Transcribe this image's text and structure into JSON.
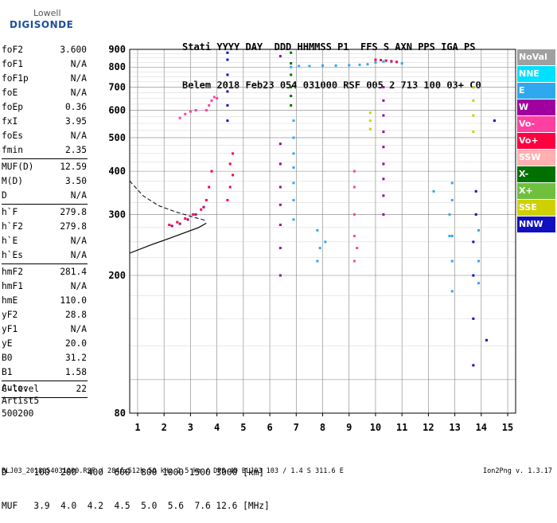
{
  "logo": {
    "line1": "Lowell",
    "line2": "DIGISONDE"
  },
  "header": {
    "line1": "Stati YYYY DAY  DDD HHMMSS P1  FFS S AXN PPS IGA PS",
    "line2": "Belem 2018 Feb23 054 031000 RSF 005 2 713 100 03+ C0"
  },
  "params": {
    "group1": [
      {
        "k": "foF2",
        "v": "3.600"
      },
      {
        "k": "foF1",
        "v": "N/A"
      },
      {
        "k": "foF1p",
        "v": "N/A"
      },
      {
        "k": "foE",
        "v": "N/A"
      },
      {
        "k": "foEp",
        "v": "0.36"
      },
      {
        "k": "fxI",
        "v": "3.95"
      },
      {
        "k": "foEs",
        "v": "N/A"
      },
      {
        "k": "fmin",
        "v": "2.35"
      }
    ],
    "group2": [
      {
        "k": "MUF(D)",
        "v": "12.59"
      },
      {
        "k": "M(D)",
        "v": "3.50"
      },
      {
        "k": "D",
        "v": "N/A"
      }
    ],
    "group3": [
      {
        "k": "h`F",
        "v": "279.8"
      },
      {
        "k": "h`F2",
        "v": "279.8"
      },
      {
        "k": "h`E",
        "v": "N/A"
      },
      {
        "k": "h`Es",
        "v": "N/A"
      }
    ],
    "group4": [
      {
        "k": "hmF2",
        "v": "281.4"
      },
      {
        "k": "hmF1",
        "v": "N/A"
      },
      {
        "k": "hmE",
        "v": "110.0"
      },
      {
        "k": "yF2",
        "v": "28.8"
      },
      {
        "k": "yF1",
        "v": "N/A"
      },
      {
        "k": "yE",
        "v": "20.0"
      },
      {
        "k": "B0",
        "v": "31.2"
      },
      {
        "k": "B1",
        "v": "1.58"
      }
    ],
    "group5": [
      {
        "k": "C-level",
        "v": "22"
      }
    ]
  },
  "auto": {
    "line1": "Auto:",
    "line2": "Artist5",
    "line3": "500200"
  },
  "muf_table": {
    "d_line": "D     100  200  400  600  800 1000 1500 3000 [km]",
    "muf_line": "MUF   3.9  4.0  4.2  4.5  5.0  5.6  7.6 12.6 [MHz]"
  },
  "footer": {
    "left": "BLJ03_2018054031000.RSF / 284fx512h 50 kHz 2.5 km / DPS-4D BLJ03 103 / 1.4 S 311.6 E",
    "right": "Ion2Png v. 1.3.17"
  },
  "legend": [
    {
      "label": "NoVal",
      "bg": "#a0a0a0",
      "fg": "#ffffff"
    },
    {
      "label": "NNE",
      "bg": "#00e0ff",
      "fg": "#ffffff"
    },
    {
      "label": "E",
      "bg": "#30a8f0",
      "fg": "#ffffff"
    },
    {
      "label": "W",
      "bg": "#a000a0",
      "fg": "#ffffff"
    },
    {
      "label": "Vo-",
      "bg": "#ff40a0",
      "fg": "#ffffff"
    },
    {
      "label": "Vo+",
      "bg": "#ff0040",
      "fg": "#ffffff"
    },
    {
      "label": "SSW",
      "bg": "#ffb0b0",
      "fg": "#ffffff"
    },
    {
      "label": "X-",
      "bg": "#007000",
      "fg": "#ffffff"
    },
    {
      "label": "X+",
      "bg": "#70c040",
      "fg": "#ffffff"
    },
    {
      "label": "SSE",
      "bg": "#d0d000",
      "fg": "#ffffff"
    },
    {
      "label": "NNW",
      "bg": "#1010c0",
      "fg": "#ffffff"
    }
  ],
  "chart_data": {
    "type": "scatter",
    "xlim": [
      0.7,
      15.3
    ],
    "ylim": [
      80,
      900
    ],
    "x_ticks": [
      1,
      2,
      3,
      4,
      5,
      6,
      7,
      8,
      9,
      10,
      11,
      12,
      13,
      14,
      15
    ],
    "y_ticks": [
      80,
      200,
      300,
      400,
      500,
      600,
      700,
      800,
      900
    ],
    "y_scale": "log",
    "grid": true,
    "profile_solid": [
      [
        0.7,
        232
      ],
      [
        1.5,
        245
      ],
      [
        2.2,
        256
      ],
      [
        2.8,
        266
      ],
      [
        3.3,
        275
      ],
      [
        3.6,
        283
      ]
    ],
    "profile_dashed": [
      [
        0.7,
        375
      ],
      [
        1.2,
        340
      ],
      [
        1.8,
        318
      ],
      [
        2.4,
        306
      ],
      [
        2.9,
        298
      ],
      [
        3.3,
        292
      ],
      [
        3.6,
        288
      ]
    ],
    "traces": [
      {
        "color": "#30a8f0",
        "pts": [
          [
            6.8,
            800
          ],
          [
            7.1,
            805
          ],
          [
            7.5,
            805
          ],
          [
            8.0,
            808
          ],
          [
            8.5,
            808
          ],
          [
            9.0,
            810
          ],
          [
            9.4,
            812
          ],
          [
            9.7,
            815
          ],
          [
            10.0,
            825
          ],
          [
            10.3,
            830
          ],
          [
            10.6,
            828
          ],
          [
            11.0,
            820
          ]
        ]
      },
      {
        "color": "#ff0040",
        "pts": [
          [
            10.0,
            840
          ],
          [
            10.2,
            838
          ],
          [
            10.4,
            835
          ],
          [
            10.6,
            832
          ],
          [
            10.8,
            828
          ]
        ]
      },
      {
        "color": "#ff0040",
        "pts": [
          [
            2.2,
            280
          ],
          [
            2.5,
            285
          ],
          [
            2.8,
            292
          ],
          [
            3.1,
            300
          ],
          [
            3.4,
            310
          ],
          [
            3.6,
            330
          ],
          [
            3.7,
            360
          ],
          [
            3.8,
            400
          ]
        ]
      },
      {
        "color": "#a000a0",
        "pts": [
          [
            2.3,
            278
          ],
          [
            2.6,
            282
          ],
          [
            2.9,
            290
          ],
          [
            3.2,
            300
          ],
          [
            3.5,
            315
          ]
        ]
      },
      {
        "color": "#ff40a0",
        "pts": [
          [
            3.6,
            600
          ],
          [
            3.7,
            620
          ],
          [
            3.8,
            640
          ],
          [
            3.9,
            655
          ],
          [
            4.0,
            650
          ],
          [
            2.6,
            570
          ],
          [
            2.8,
            585
          ],
          [
            3.0,
            595
          ],
          [
            3.2,
            600
          ]
        ]
      },
      {
        "color": "#ff0040",
        "pts": [
          [
            4.4,
            330
          ],
          [
            4.5,
            360
          ],
          [
            4.6,
            390
          ],
          [
            4.5,
            420
          ],
          [
            4.6,
            450
          ]
        ]
      },
      {
        "color": "#007000",
        "pts": [
          [
            6.8,
            620
          ],
          [
            6.8,
            660
          ],
          [
            6.8,
            700
          ],
          [
            6.8,
            760
          ],
          [
            6.8,
            820
          ],
          [
            6.8,
            880
          ]
        ]
      },
      {
        "color": "#30a8f0",
        "pts": [
          [
            6.9,
            290
          ],
          [
            6.9,
            330
          ],
          [
            6.9,
            370
          ],
          [
            6.9,
            410
          ],
          [
            6.9,
            450
          ],
          [
            6.9,
            500
          ],
          [
            6.9,
            560
          ]
        ]
      },
      {
        "color": "#a000a0",
        "pts": [
          [
            10.3,
            300
          ],
          [
            10.3,
            340
          ],
          [
            10.3,
            380
          ],
          [
            10.3,
            420
          ],
          [
            10.3,
            470
          ],
          [
            10.3,
            520
          ],
          [
            10.3,
            580
          ],
          [
            10.3,
            640
          ],
          [
            10.3,
            700
          ]
        ]
      },
      {
        "color": "#1010c0",
        "pts": [
          [
            4.4,
            560
          ],
          [
            4.4,
            620
          ],
          [
            4.4,
            680
          ],
          [
            4.4,
            760
          ],
          [
            4.4,
            840
          ],
          [
            4.4,
            880
          ]
        ]
      },
      {
        "color": "#d0d000",
        "pts": [
          [
            9.8,
            530
          ],
          [
            9.8,
            560
          ],
          [
            9.8,
            590
          ],
          [
            13.7,
            520
          ],
          [
            13.7,
            580
          ],
          [
            13.7,
            640
          ],
          [
            13.7,
            700
          ]
        ]
      },
      {
        "color": "#30a8f0",
        "pts": [
          [
            12.9,
            180
          ],
          [
            12.9,
            220
          ],
          [
            12.9,
            260
          ],
          [
            12.9,
            330
          ],
          [
            12.9,
            370
          ],
          [
            13.9,
            190
          ],
          [
            13.9,
            220
          ],
          [
            13.9,
            270
          ]
        ]
      },
      {
        "color": "#a000a0",
        "pts": [
          [
            6.4,
            200
          ],
          [
            6.4,
            240
          ],
          [
            6.4,
            280
          ],
          [
            6.4,
            320
          ],
          [
            6.4,
            360
          ],
          [
            6.4,
            420
          ],
          [
            6.4,
            480
          ],
          [
            6.4,
            860
          ]
        ]
      },
      {
        "color": "#ff40a0",
        "pts": [
          [
            9.2,
            220
          ],
          [
            9.2,
            260
          ],
          [
            9.2,
            300
          ],
          [
            9.2,
            360
          ],
          [
            9.2,
            400
          ],
          [
            9.3,
            240
          ]
        ]
      },
      {
        "color": "#1010c0",
        "pts": [
          [
            13.7,
            110
          ],
          [
            13.7,
            150
          ],
          [
            13.7,
            200
          ],
          [
            13.7,
            250
          ],
          [
            13.8,
            300
          ],
          [
            13.8,
            350
          ],
          [
            14.2,
            130
          ],
          [
            14.5,
            560
          ]
        ]
      },
      {
        "color": "#30a8f0",
        "pts": [
          [
            7.8,
            220
          ],
          [
            7.9,
            240
          ],
          [
            7.8,
            270
          ],
          [
            8.1,
            250
          ],
          [
            12.2,
            350
          ],
          [
            12.8,
            300
          ],
          [
            12.8,
            260
          ]
        ]
      }
    ]
  }
}
